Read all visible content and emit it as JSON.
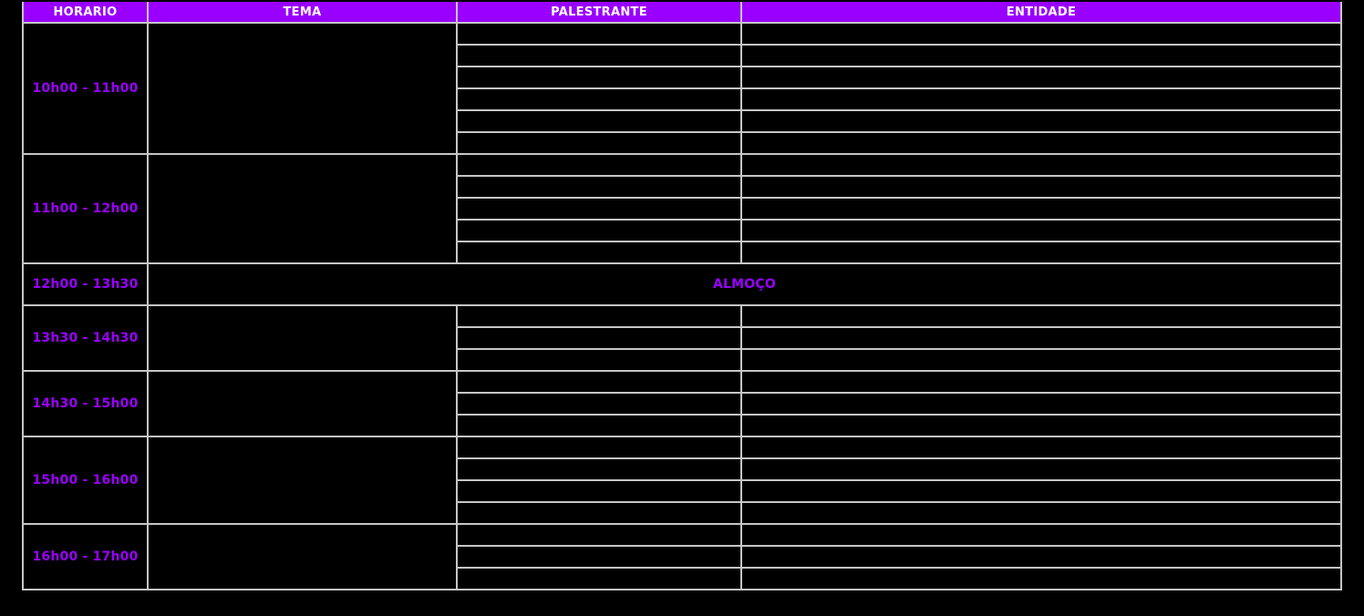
{
  "table": {
    "columns": [
      "HORARIO",
      "TEMA",
      "PALESTRANTE",
      "ENTIDADE"
    ],
    "blocks": [
      {
        "time": "10h00 - 11h00",
        "slots": 6
      },
      {
        "time": "11h00 - 12h00",
        "slots": 5
      },
      {
        "time": "12h00 - 13h30",
        "slots": 0,
        "merged_label": "ALMOÇO"
      },
      {
        "time": "13h30 - 14h30",
        "slots": 3
      },
      {
        "time": "14h30 - 15h00",
        "slots": 3
      },
      {
        "time": "15h00 - 16h00",
        "slots": 4
      },
      {
        "time": "16h00 - 17h00",
        "slots": 3
      }
    ],
    "colors": {
      "background": "#000000",
      "header_bg": "#9900ff",
      "header_text": "#ffffff",
      "accent_text": "#9900ff",
      "grid_border": "#c6c6c6"
    }
  }
}
